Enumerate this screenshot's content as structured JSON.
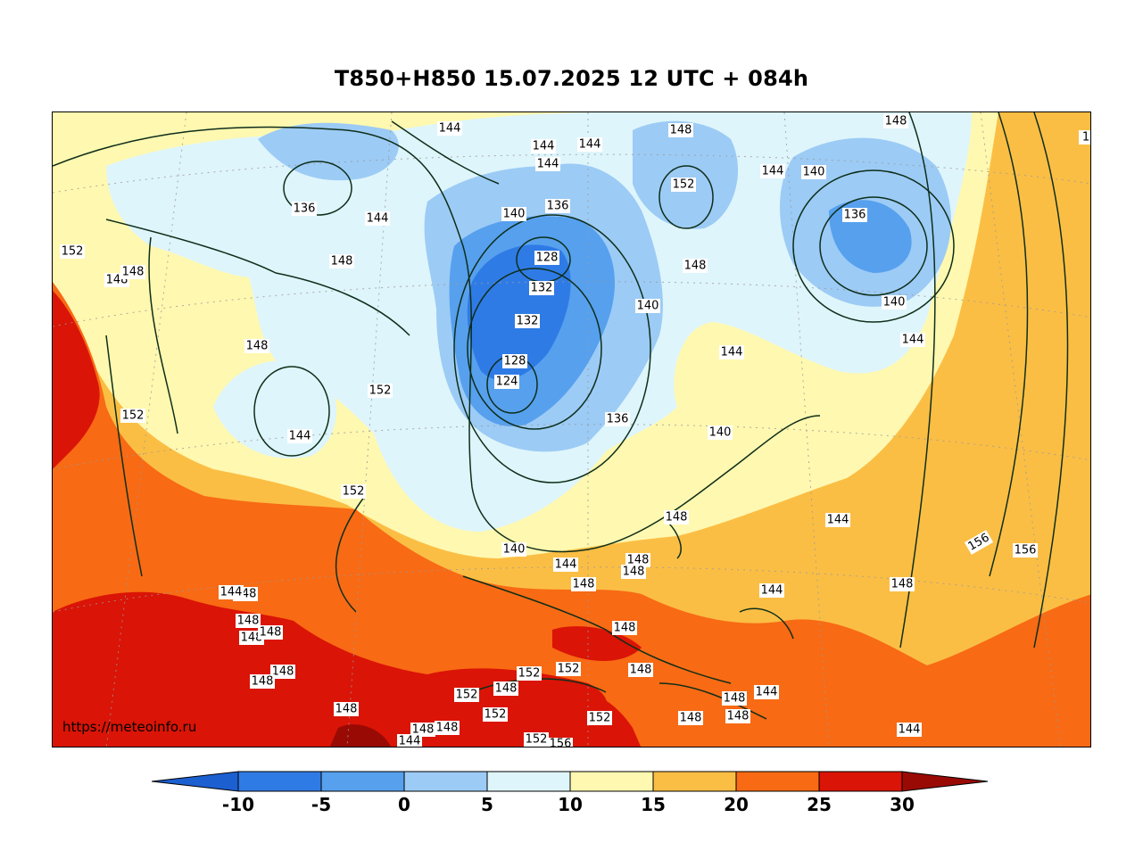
{
  "title": "T850+H850 15.07.2025 12 UTC + 084h",
  "watermark": "https://meteoinfo.ru",
  "colorbar": {
    "tick_labels": [
      "-10",
      "-5",
      "0",
      "5",
      "10",
      "15",
      "20",
      "25",
      "30"
    ],
    "colors": {
      "below_-10": "#1c5fd0",
      "-10_-5": "#2f7be6",
      "-5_0": "#56a0ee",
      "0_5": "#9ccbf5",
      "5_10": "#def5fb",
      "10_15": "#fff8b0",
      "15_20": "#fbbe44",
      "20_25": "#f86a14",
      "25_30": "#da1406",
      "above_30": "#9a0a04"
    }
  },
  "contour_labels": [
    "152",
    "148",
    "148",
    "152",
    "136",
    "144",
    "148",
    "144",
    "148",
    "144",
    "144",
    "144",
    "144",
    "140",
    "136",
    "128",
    "132",
    "132",
    "128",
    "124",
    "136",
    "152",
    "148",
    "148",
    "140",
    "144",
    "140",
    "136",
    "140",
    "144",
    "144",
    "148",
    "152",
    "144",
    "140",
    "144",
    "140",
    "148",
    "152",
    "148",
    "148",
    "148",
    "144",
    "148",
    "148",
    "148",
    "144",
    "148",
    "148",
    "148",
    "148",
    "148",
    "148",
    "148",
    "148",
    "152",
    "152",
    "152",
    "152",
    "152",
    "148",
    "152",
    "148",
    "148",
    "144",
    "148",
    "152",
    "156",
    "144",
    "144",
    "148",
    "148",
    "144",
    "148",
    "156",
    "156",
    "144",
    "144",
    "1"
  ]
}
